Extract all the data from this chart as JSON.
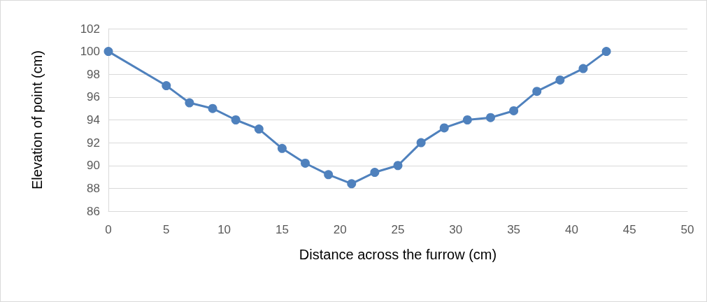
{
  "chart_data": {
    "type": "line",
    "xlabel": "Distance across the furrow (cm)",
    "ylabel": "Elevation of point (cm)",
    "x": [
      0,
      5,
      7,
      9,
      11,
      13,
      15,
      17,
      19,
      21,
      23,
      25,
      27,
      29,
      31,
      33,
      35,
      37,
      39,
      41,
      43
    ],
    "series": [
      {
        "color": "#4f81bd",
        "values": [
          100,
          97,
          95.5,
          95,
          94,
          93.2,
          91.5,
          90.2,
          89.2,
          88.4,
          89.4,
          90,
          92,
          93.3,
          94,
          94.2,
          94.8,
          96.5,
          97.5,
          98.5,
          100
        ]
      }
    ],
    "xlim": [
      0,
      50
    ],
    "xticks": [
      0,
      5,
      10,
      15,
      20,
      25,
      30,
      35,
      40,
      45,
      50
    ],
    "ylim": [
      86,
      102
    ],
    "yticks": [
      86,
      88,
      90,
      92,
      94,
      96,
      98,
      100,
      102
    ],
    "grid": "y",
    "marker": "circle",
    "line_style": "solid"
  }
}
